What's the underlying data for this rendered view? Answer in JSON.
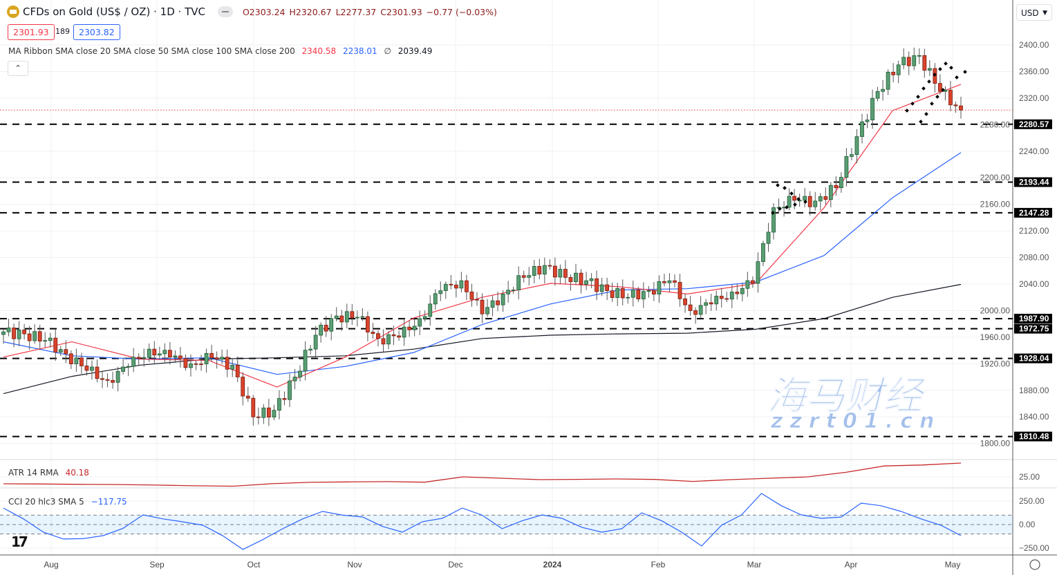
{
  "header": {
    "symbol": "CFDs on Gold (US$ / OZ) · 1D · TVC",
    "open": "O2303.24",
    "high": "H2320.67",
    "low": "L2277.37",
    "close": "C2301.93",
    "change": "−0.77 (−0.03%)",
    "bid": "2301.93",
    "spread": "189",
    "ask": "2303.82",
    "currency": "USD"
  },
  "indicators": {
    "ma_ribbon_label": "MA Ribbon SMA close 20 SMA close 50 SMA close 100 SMA close 200",
    "ma20_value": "2340.58",
    "ma50_value": "2238.01",
    "ma100_value": "∅",
    "ma200_value": "2039.49",
    "atr_label": "ATR 14 RMA",
    "atr_value": "40.18",
    "cci_label": "CCI 20 hlc3 SMA 5",
    "cci_value": "−117.75"
  },
  "colors": {
    "up": "#5a9e73",
    "down": "#d9442c",
    "ma20": "#f23645",
    "ma50": "#2962ff",
    "ma200": "#131722",
    "atr": "#c62828",
    "cci": "#2962ff"
  },
  "watermark": {
    "line1": "海马财经",
    "line2": "zzrt01.cn"
  },
  "chart_data": {
    "type": "candlestick",
    "price_axis": {
      "ticks": [
        2400,
        2360,
        2320,
        2280,
        2240,
        2200,
        2160,
        2120,
        2080,
        2040,
        2000,
        1960,
        1920,
        1880,
        1840,
        1800
      ],
      "range": [
        1790,
        2430
      ]
    },
    "time_axis": {
      "labels": [
        "Aug",
        "Sep",
        "Oct",
        "Nov",
        "Dec",
        "2024",
        "Feb",
        "Mar",
        "Apr",
        "May"
      ]
    },
    "closes": [
      1968,
      1965,
      1955,
      1935,
      1910,
      1895,
      1916,
      1942,
      1930,
      1920,
      1929,
      1918,
      1840,
      1850,
      1900,
      1963,
      1992,
      1990,
      1958,
      1960,
      1988,
      2030,
      2045,
      1995,
      2025,
      2050,
      2068,
      2050,
      2045,
      2030,
      2020,
      2030,
      2045,
      2000,
      2010,
      2028,
      2041,
      2155,
      2166,
      2165,
      2185,
      2262,
      2330,
      2370,
      2384,
      2330,
      2301.93
    ],
    "last_price": 2301.93,
    "horizontal_levels": [
      2280.57,
      2193.44,
      2147.28,
      1987.9,
      1972.75,
      1928.04,
      1810.48
    ],
    "sma20": [
      1930,
      1953,
      1927,
      1925,
      1885,
      1930,
      1989,
      2020,
      2041,
      2036,
      2025,
      2041,
      2155,
      2301,
      2340.58
    ],
    "sma50": [
      1953,
      1932,
      1927,
      1929,
      1904,
      1916,
      1937,
      1979,
      2010,
      2031,
      2033,
      2043,
      2083,
      2170,
      2238.01
    ],
    "sma200": [
      1875,
      1901,
      1918,
      1927,
      1929,
      1932,
      1942,
      1958,
      1963,
      1965,
      1966,
      1972,
      1988,
      2020,
      2039.49
    ],
    "atr": {
      "ticks": [
        25
      ],
      "values": [
        17.4,
        17.2,
        16.8,
        16.6,
        16.0,
        15.2,
        14.8,
        17.5,
        19,
        19.5,
        19.8,
        19.2,
        25,
        23.5,
        22,
        22.3,
        22.7,
        22.2,
        20,
        22,
        23.5,
        25,
        30,
        37,
        38,
        40.18
      ]
    },
    "cci": {
      "ticks": [
        250,
        0,
        -250
      ],
      "bands": [
        100,
        -100
      ],
      "values": [
        176,
        60,
        -81,
        -154,
        -150,
        -118,
        -40,
        103,
        60,
        29,
        -7,
        -120,
        -265,
        -160,
        -44,
        60,
        140,
        100,
        81,
        -20,
        -81,
        30,
        66,
        176,
        100,
        -44,
        40,
        103,
        66,
        -30,
        -81,
        -44,
        125,
        40,
        -81,
        -228,
        -7,
        103,
        331,
        200,
        103,
        66,
        80,
        228,
        200,
        140,
        60,
        -7,
        -118
      ]
    }
  }
}
